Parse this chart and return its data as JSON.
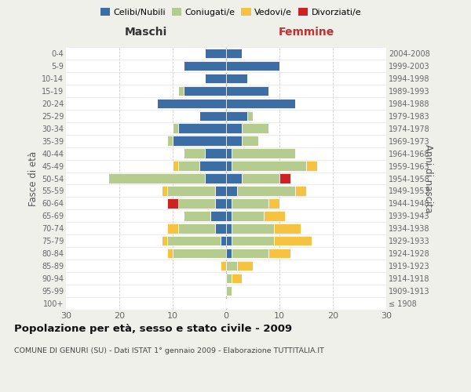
{
  "age_groups": [
    "100+",
    "95-99",
    "90-94",
    "85-89",
    "80-84",
    "75-79",
    "70-74",
    "65-69",
    "60-64",
    "55-59",
    "50-54",
    "45-49",
    "40-44",
    "35-39",
    "30-34",
    "25-29",
    "20-24",
    "15-19",
    "10-14",
    "5-9",
    "0-4"
  ],
  "birth_years": [
    "≤ 1908",
    "1909-1913",
    "1914-1918",
    "1919-1923",
    "1924-1928",
    "1929-1933",
    "1934-1938",
    "1939-1943",
    "1944-1948",
    "1949-1953",
    "1954-1958",
    "1959-1963",
    "1964-1968",
    "1969-1973",
    "1974-1978",
    "1979-1983",
    "1984-1988",
    "1989-1993",
    "1994-1998",
    "1999-2003",
    "2004-2008"
  ],
  "colors": {
    "celibe": "#3a6ea5",
    "coniugato": "#b5cc8e",
    "vedovo": "#f5c242",
    "divorziato": "#cc2222"
  },
  "maschi": {
    "celibe": [
      0,
      0,
      0,
      0,
      0,
      1,
      2,
      3,
      2,
      2,
      4,
      5,
      4,
      10,
      9,
      5,
      13,
      8,
      4,
      8,
      4
    ],
    "coniugato": [
      0,
      0,
      0,
      0,
      10,
      10,
      7,
      5,
      7,
      9,
      18,
      4,
      4,
      1,
      1,
      0,
      0,
      1,
      0,
      0,
      0
    ],
    "vedovo": [
      0,
      0,
      0,
      1,
      1,
      1,
      2,
      0,
      0,
      1,
      0,
      1,
      0,
      0,
      0,
      0,
      0,
      0,
      0,
      0,
      0
    ],
    "divorziato": [
      0,
      0,
      0,
      0,
      0,
      0,
      0,
      0,
      2,
      0,
      0,
      0,
      0,
      0,
      0,
      0,
      0,
      0,
      0,
      0,
      0
    ]
  },
  "femmine": {
    "nubile": [
      0,
      0,
      0,
      0,
      1,
      1,
      1,
      1,
      1,
      2,
      3,
      1,
      1,
      3,
      3,
      4,
      13,
      8,
      4,
      10,
      3
    ],
    "coniugata": [
      0,
      1,
      1,
      2,
      7,
      8,
      8,
      6,
      7,
      11,
      7,
      14,
      12,
      3,
      5,
      1,
      0,
      0,
      0,
      0,
      0
    ],
    "vedova": [
      0,
      0,
      2,
      3,
      4,
      7,
      5,
      4,
      2,
      2,
      0,
      2,
      0,
      0,
      0,
      0,
      0,
      0,
      0,
      0,
      0
    ],
    "divorziata": [
      0,
      0,
      0,
      0,
      0,
      0,
      0,
      0,
      0,
      0,
      2,
      0,
      0,
      0,
      0,
      0,
      0,
      0,
      0,
      0,
      0
    ]
  },
  "xlim": 30,
  "title": "Popolazione per età, sesso e stato civile - 2009",
  "subtitle": "COMUNE DI GENURI (SU) - Dati ISTAT 1° gennaio 2009 - Elaborazione TUTTITALIA.IT",
  "xlabel_left": "Maschi",
  "xlabel_right": "Femmine",
  "ylabel_left": "Fasce di età",
  "ylabel_right": "Anni di nascita",
  "legend_labels": [
    "Celibi/Nubili",
    "Coniugati/e",
    "Vedovi/e",
    "Divorziati/e"
  ],
  "bg_color": "#f0f0eb",
  "plot_bg_color": "#ffffff"
}
